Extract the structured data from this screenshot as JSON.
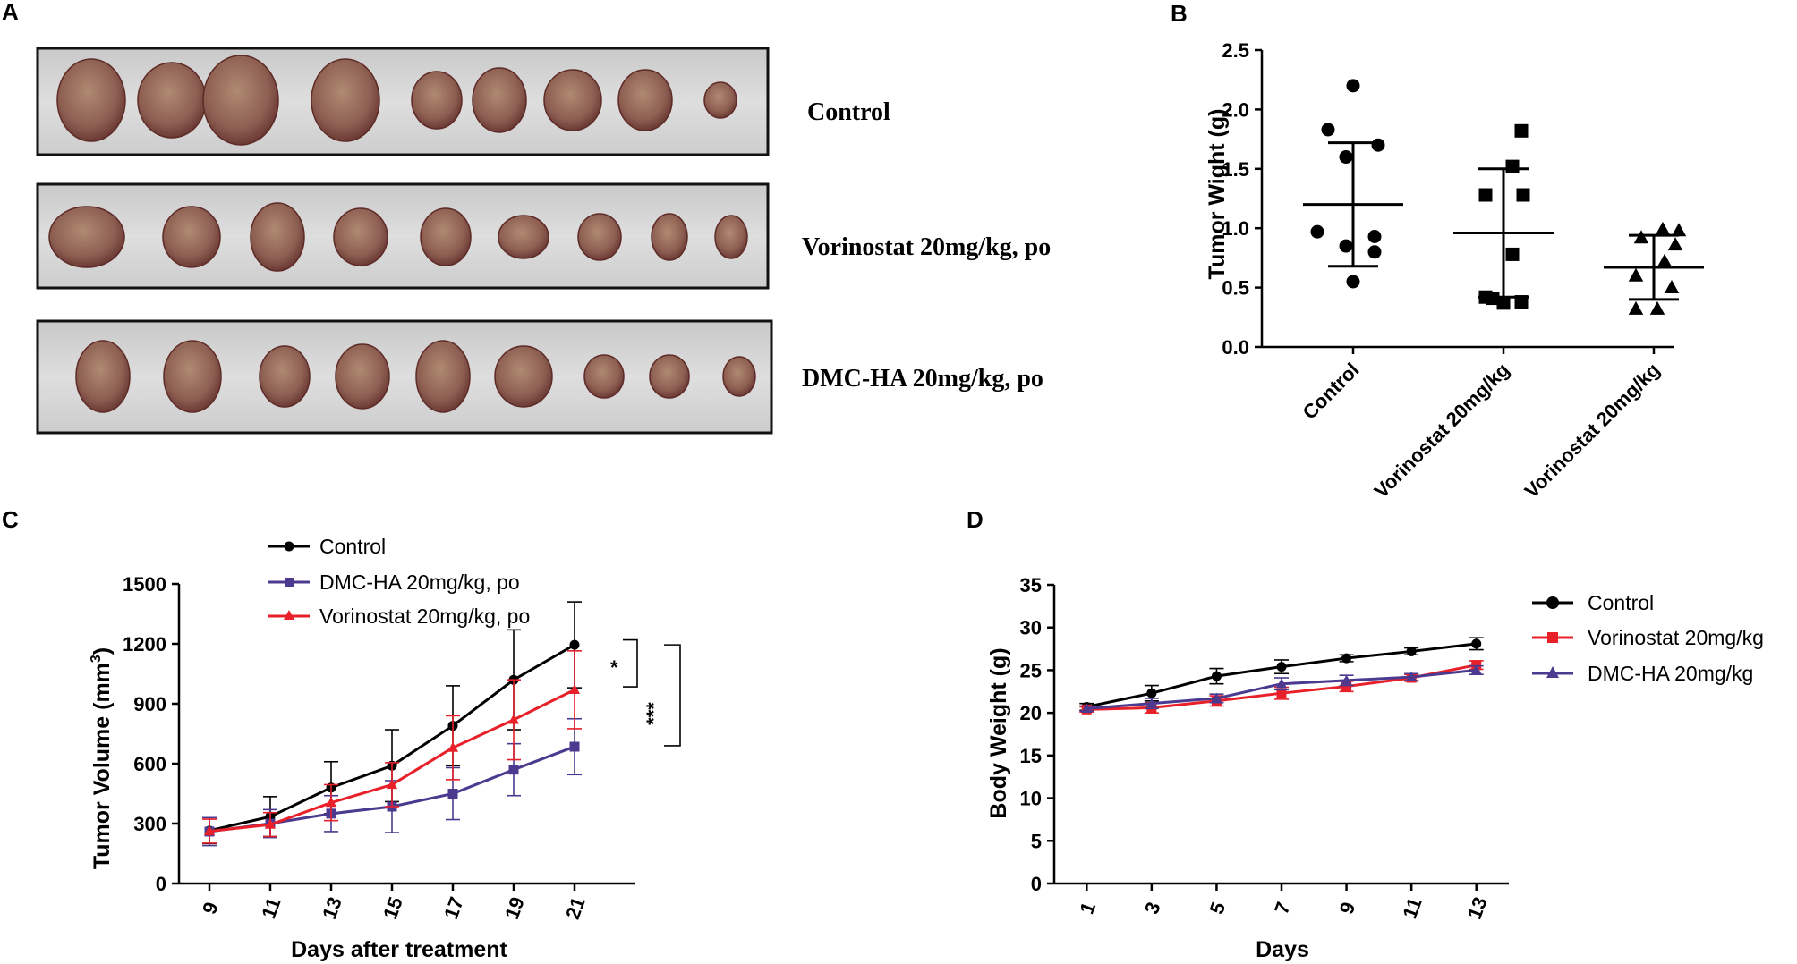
{
  "panels": {
    "a": "A",
    "b": "B",
    "c": "C",
    "d": "D"
  },
  "photo_rows": [
    {
      "label": "Control",
      "count": 9
    },
    {
      "label": "Vorinostat 20mg/kg, po",
      "count": 9
    },
    {
      "label": "DMC-HA 20mg/kg, po",
      "count": 9
    }
  ],
  "colors": {
    "control": "#000000",
    "vorinostat": "#e8202a",
    "dmcha": "#4b3a8f",
    "tumor": "#8f6358",
    "photo_bg": "#d4d4d4"
  },
  "chart_data": [
    {
      "id": "B",
      "type": "scatter",
      "ylabel": "Tumor Wight (g)",
      "ylim": [
        0,
        2.5
      ],
      "yticks": [
        0.0,
        0.5,
        1.0,
        1.5,
        2.0,
        2.5
      ],
      "ytick_labels": [
        "0.0",
        "0.5",
        "1.0",
        "1.5",
        "2.0",
        "2.5"
      ],
      "categories": [
        "Control",
        "Vorinostat 20mg/kg",
        "Vorinostat 20mg/kg"
      ],
      "groups": [
        {
          "name": "Control",
          "marker": "circle",
          "points": [
            2.2,
            1.83,
            1.7,
            1.6,
            0.97,
            0.93,
            0.85,
            0.8,
            0.55
          ],
          "mean": 1.2,
          "sd_low": 0.68,
          "sd_high": 1.72
        },
        {
          "name": "Vorinostat 20mg/kg",
          "marker": "square",
          "points": [
            1.82,
            1.52,
            1.28,
            1.28,
            0.78,
            0.42,
            0.41,
            0.38,
            0.37
          ],
          "mean": 0.96,
          "sd_low": 0.42,
          "sd_high": 1.5
        },
        {
          "name": "Vorinostat 20mg/kg",
          "marker": "triangle",
          "points": [
            0.99,
            0.98,
            0.92,
            0.86,
            0.72,
            0.6,
            0.5,
            0.32,
            0.32
          ],
          "mean": 0.67,
          "sd_low": 0.4,
          "sd_high": 0.94
        }
      ]
    },
    {
      "id": "C",
      "type": "line",
      "xlabel": "Days after treatment",
      "ylabel": "Tumor Volume (mm",
      "ylabel_sup": "3",
      "ylabel_end": ")",
      "x": [
        9,
        11,
        13,
        15,
        17,
        19,
        21
      ],
      "xlim": [
        8,
        23
      ],
      "ylim": [
        0,
        1500
      ],
      "yticks": [
        0,
        300,
        600,
        900,
        1200,
        1500
      ],
      "series": [
        {
          "name": "Control",
          "color": "#000000",
          "marker": "circle",
          "values": [
            265,
            335,
            480,
            590,
            790,
            1020,
            1195
          ],
          "errors": [
            65,
            100,
            130,
            180,
            200,
            250,
            215
          ]
        },
        {
          "name": "DMC-HA 20mg/kg, po",
          "color": "#4b3a8f",
          "marker": "square",
          "values": [
            260,
            300,
            350,
            385,
            450,
            570,
            685
          ],
          "errors": [
            70,
            70,
            90,
            130,
            130,
            130,
            140
          ]
        },
        {
          "name": "Vorinostat 20mg/kg, po",
          "color": "#e8202a",
          "marker": "triangle",
          "values": [
            262,
            295,
            405,
            495,
            680,
            820,
            970
          ],
          "errors": [
            60,
            60,
            90,
            110,
            160,
            200,
            195
          ]
        }
      ],
      "annotations": [
        {
          "text": "*",
          "y_from": 1220,
          "y_to": 985
        },
        {
          "text": "***",
          "y_from": 1195,
          "y_to": 690
        }
      ]
    },
    {
      "id": "D",
      "type": "line",
      "xlabel": "Days",
      "ylabel": "Body Weight (g)",
      "x": [
        1,
        3,
        5,
        7,
        9,
        11,
        13
      ],
      "xlim": [
        0,
        14
      ],
      "ylim": [
        0,
        35
      ],
      "yticks": [
        0,
        5,
        10,
        15,
        20,
        25,
        30,
        35
      ],
      "series": [
        {
          "name": "Control",
          "color": "#000000",
          "marker": "circle",
          "values": [
            20.7,
            22.3,
            24.3,
            25.4,
            26.4,
            27.2,
            28.1
          ],
          "errors": [
            0.4,
            0.9,
            0.9,
            0.8,
            0.4,
            0.4,
            0.7
          ]
        },
        {
          "name": "Vorinostat 20mg/kg",
          "color": "#e8202a",
          "marker": "square",
          "values": [
            20.4,
            20.6,
            21.4,
            22.3,
            23.1,
            24.1,
            25.6
          ],
          "errors": [
            0.3,
            0.6,
            0.6,
            0.7,
            0.6,
            0.4,
            0.5
          ]
        },
        {
          "name": "DMC-HA 20mg/kg",
          "color": "#4b3a8f",
          "marker": "triangle",
          "values": [
            20.5,
            21.1,
            21.7,
            23.4,
            23.8,
            24.2,
            25.0
          ],
          "errors": [
            0.3,
            0.6,
            0.5,
            0.7,
            0.6,
            0.4,
            0.5
          ]
        }
      ]
    }
  ]
}
